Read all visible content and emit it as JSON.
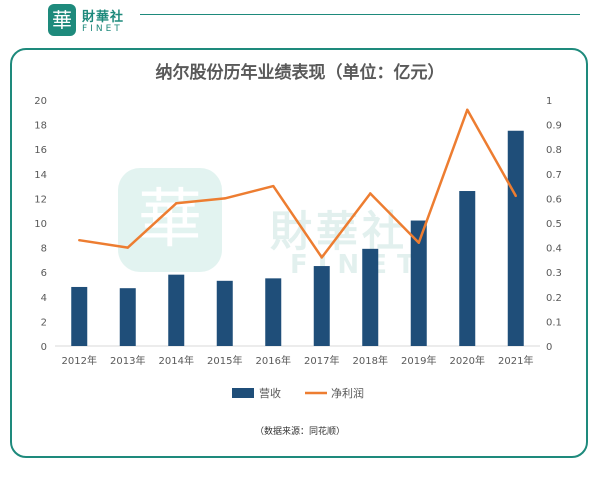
{
  "brand": {
    "logo_char": "華",
    "name": "財華社",
    "sub": "FINET"
  },
  "source_note": "（数据来源：同花顺）",
  "colors": {
    "bar": "#1f4e79",
    "line": "#ed7d31",
    "brand": "#1e8a7c"
  },
  "chart_data": {
    "type": "bar",
    "title": "纳尔股份历年业绩表现（单位：亿元）",
    "categories": [
      "2012年",
      "2013年",
      "2014年",
      "2015年",
      "2016年",
      "2017年",
      "2018年",
      "2019年",
      "2020年",
      "2021年"
    ],
    "series": [
      {
        "name": "营收",
        "type": "bar",
        "axis": "left",
        "values": [
          4.8,
          4.7,
          5.8,
          5.3,
          5.5,
          6.5,
          7.9,
          10.2,
          12.6,
          17.5
        ]
      },
      {
        "name": "净利润",
        "type": "line",
        "axis": "right",
        "values": [
          0.43,
          0.4,
          0.58,
          0.6,
          0.65,
          0.36,
          0.62,
          0.42,
          0.96,
          0.61
        ]
      }
    ],
    "y_left": {
      "min": 0,
      "max": 20,
      "ticks": [
        "0",
        "2",
        "4",
        "6",
        "8",
        "10",
        "12",
        "14",
        "16",
        "18",
        "20"
      ]
    },
    "y_right": {
      "min": 0,
      "max": 1,
      "ticks": [
        "0",
        "0.1",
        "0.2",
        "0.3",
        "0.4",
        "0.5",
        "0.6",
        "0.7",
        "0.8",
        "0.9",
        "1"
      ]
    },
    "grid": false,
    "legend_position": "bottom"
  }
}
